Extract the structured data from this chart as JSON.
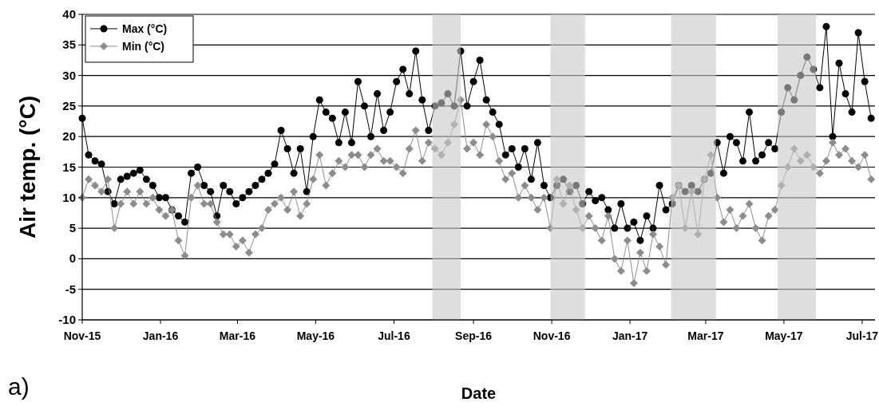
{
  "chart_data": {
    "type": "line",
    "xlabel": "Date",
    "ylabel": "Air temp. (°C)",
    "annotations": [
      "a)"
    ],
    "x": [
      "2015-11-01",
      "2015-11-06",
      "2015-11-11",
      "2015-11-16",
      "2015-11-21",
      "2015-11-26",
      "2015-12-01",
      "2015-12-06",
      "2015-12-11",
      "2015-12-16",
      "2015-12-21",
      "2015-12-26",
      "2015-12-31",
      "2016-01-05",
      "2016-01-10",
      "2016-01-15",
      "2016-01-20",
      "2016-01-25",
      "2016-01-30",
      "2016-02-04",
      "2016-02-09",
      "2016-02-14",
      "2016-02-19",
      "2016-02-24",
      "2016-02-29",
      "2016-03-05",
      "2016-03-10",
      "2016-03-15",
      "2016-03-20",
      "2016-03-25",
      "2016-03-30",
      "2016-04-04",
      "2016-04-09",
      "2016-04-14",
      "2016-04-19",
      "2016-04-24",
      "2016-04-29",
      "2016-05-04",
      "2016-05-09",
      "2016-05-14",
      "2016-05-19",
      "2016-05-24",
      "2016-05-29",
      "2016-06-03",
      "2016-06-08",
      "2016-06-13",
      "2016-06-18",
      "2016-06-23",
      "2016-06-28",
      "2016-07-03",
      "2016-07-08",
      "2016-07-13",
      "2016-07-18",
      "2016-07-23",
      "2016-07-28",
      "2016-08-02",
      "2016-08-07",
      "2016-08-12",
      "2016-08-17",
      "2016-08-22",
      "2016-08-27",
      "2016-09-01",
      "2016-09-06",
      "2016-09-11",
      "2016-09-16",
      "2016-09-21",
      "2016-09-26",
      "2016-10-01",
      "2016-10-06",
      "2016-10-11",
      "2016-10-16",
      "2016-10-21",
      "2016-10-26",
      "2016-10-31",
      "2016-11-05",
      "2016-11-10",
      "2016-11-15",
      "2016-11-20",
      "2016-11-25",
      "2016-11-30",
      "2016-12-05",
      "2016-12-10",
      "2016-12-15",
      "2016-12-20",
      "2016-12-25",
      "2016-12-30",
      "2017-01-04",
      "2017-01-09",
      "2017-01-14",
      "2017-01-19",
      "2017-01-24",
      "2017-01-29",
      "2017-02-03",
      "2017-02-08",
      "2017-02-13",
      "2017-02-18",
      "2017-02-23",
      "2017-02-28",
      "2017-03-05",
      "2017-03-10",
      "2017-03-15",
      "2017-03-20",
      "2017-03-25",
      "2017-03-30",
      "2017-04-04",
      "2017-04-09",
      "2017-04-14",
      "2017-04-19",
      "2017-04-24",
      "2017-04-29",
      "2017-05-04",
      "2017-05-09",
      "2017-05-14",
      "2017-05-19",
      "2017-05-24",
      "2017-05-29",
      "2017-06-03",
      "2017-06-08",
      "2017-06-13",
      "2017-06-18",
      "2017-06-23",
      "2017-06-28",
      "2017-07-03",
      "2017-07-08"
    ],
    "series": [
      {
        "name": "Max (°C)",
        "color": "#000000",
        "marker": "circle",
        "values": [
          23,
          17,
          16,
          15.5,
          11,
          9,
          13,
          13.5,
          14,
          14.5,
          13,
          12,
          10,
          10,
          8,
          7,
          6,
          14,
          15,
          12,
          11,
          7,
          12,
          11,
          9,
          10,
          11,
          12,
          13,
          14,
          15.5,
          21,
          18,
          14,
          18,
          11,
          20,
          26,
          24,
          23,
          19,
          24,
          19,
          29,
          25,
          20,
          27,
          21,
          24,
          29,
          31,
          27,
          34,
          26,
          21,
          25,
          25.5,
          27,
          25,
          34,
          25,
          29,
          32.5,
          26,
          24,
          22,
          17,
          18,
          15,
          18,
          13,
          19,
          12,
          10,
          12,
          13,
          11,
          12,
          9,
          11,
          9.5,
          10,
          8,
          5,
          9,
          5,
          6,
          3,
          7,
          5,
          12,
          8,
          9,
          12,
          11,
          12,
          11,
          13,
          14,
          19,
          14,
          20,
          19,
          16,
          24,
          16,
          17,
          19,
          18,
          24,
          28,
          26,
          30,
          33,
          31,
          28,
          38,
          20,
          32,
          27,
          24,
          37,
          29,
          23
        ]
      },
      {
        "name": "Min (°C)",
        "color": "#8c8c8c",
        "marker": "diamond",
        "values": [
          10,
          13,
          12,
          11,
          13,
          5,
          9,
          11,
          9,
          11,
          9,
          10,
          8,
          7,
          8,
          3,
          0.5,
          10,
          12,
          9,
          9,
          6,
          4,
          4,
          2,
          3,
          1,
          4,
          5,
          8,
          9,
          10,
          8,
          11,
          7,
          9,
          13,
          17,
          12,
          14,
          16,
          15,
          17,
          17,
          15,
          17,
          18,
          16,
          16,
          15,
          14,
          18,
          21,
          16,
          19,
          18,
          17,
          19,
          22,
          26,
          18,
          19,
          17,
          22,
          20,
          16,
          13,
          14,
          10,
          12,
          10,
          8,
          10,
          5,
          13,
          9,
          12,
          8,
          5,
          7,
          5,
          3,
          7,
          0,
          -2,
          3,
          -4,
          1,
          -2,
          4,
          2,
          -1,
          10,
          12,
          5,
          11,
          4,
          13,
          17,
          10,
          6,
          8,
          5,
          7,
          9,
          5,
          3,
          7,
          8,
          12,
          15,
          18,
          16,
          17,
          15,
          14,
          16,
          19,
          17,
          18,
          16,
          15,
          17,
          13
        ]
      }
    ],
    "xlim": [
      "2015-11-01",
      "2017-07-11"
    ],
    "xticks": [
      {
        "value": "2015-11-01",
        "label": "Nov-15"
      },
      {
        "value": "2016-01-01",
        "label": "Jan-16"
      },
      {
        "value": "2016-03-01",
        "label": "Mar-16"
      },
      {
        "value": "2016-05-01",
        "label": "May-16"
      },
      {
        "value": "2016-07-01",
        "label": "Jul-16"
      },
      {
        "value": "2016-09-01",
        "label": "Sep-16"
      },
      {
        "value": "2016-11-01",
        "label": "Nov-16"
      },
      {
        "value": "2017-01-01",
        "label": "Jan-17"
      },
      {
        "value": "2017-03-01",
        "label": "Mar-17"
      },
      {
        "value": "2017-05-01",
        "label": "May-17"
      },
      {
        "value": "2017-07-01",
        "label": "Jul-17"
      }
    ],
    "ylim": [
      -10,
      40
    ],
    "yticks": [
      -10,
      -5,
      0,
      5,
      10,
      15,
      20,
      25,
      30,
      35,
      40
    ],
    "bands": [
      {
        "axis": "x",
        "from": "2016-07-31",
        "to": "2016-08-22",
        "color": "#c8c8c8"
      },
      {
        "axis": "x",
        "from": "2016-10-31",
        "to": "2016-11-27",
        "color": "#c8c8c8"
      },
      {
        "axis": "x",
        "from": "2017-02-02",
        "to": "2017-03-09",
        "color": "#c8c8c8"
      },
      {
        "axis": "x",
        "from": "2017-04-26",
        "to": "2017-05-26",
        "color": "#c8c8c8"
      }
    ],
    "grid": "y",
    "legend": "top left"
  }
}
